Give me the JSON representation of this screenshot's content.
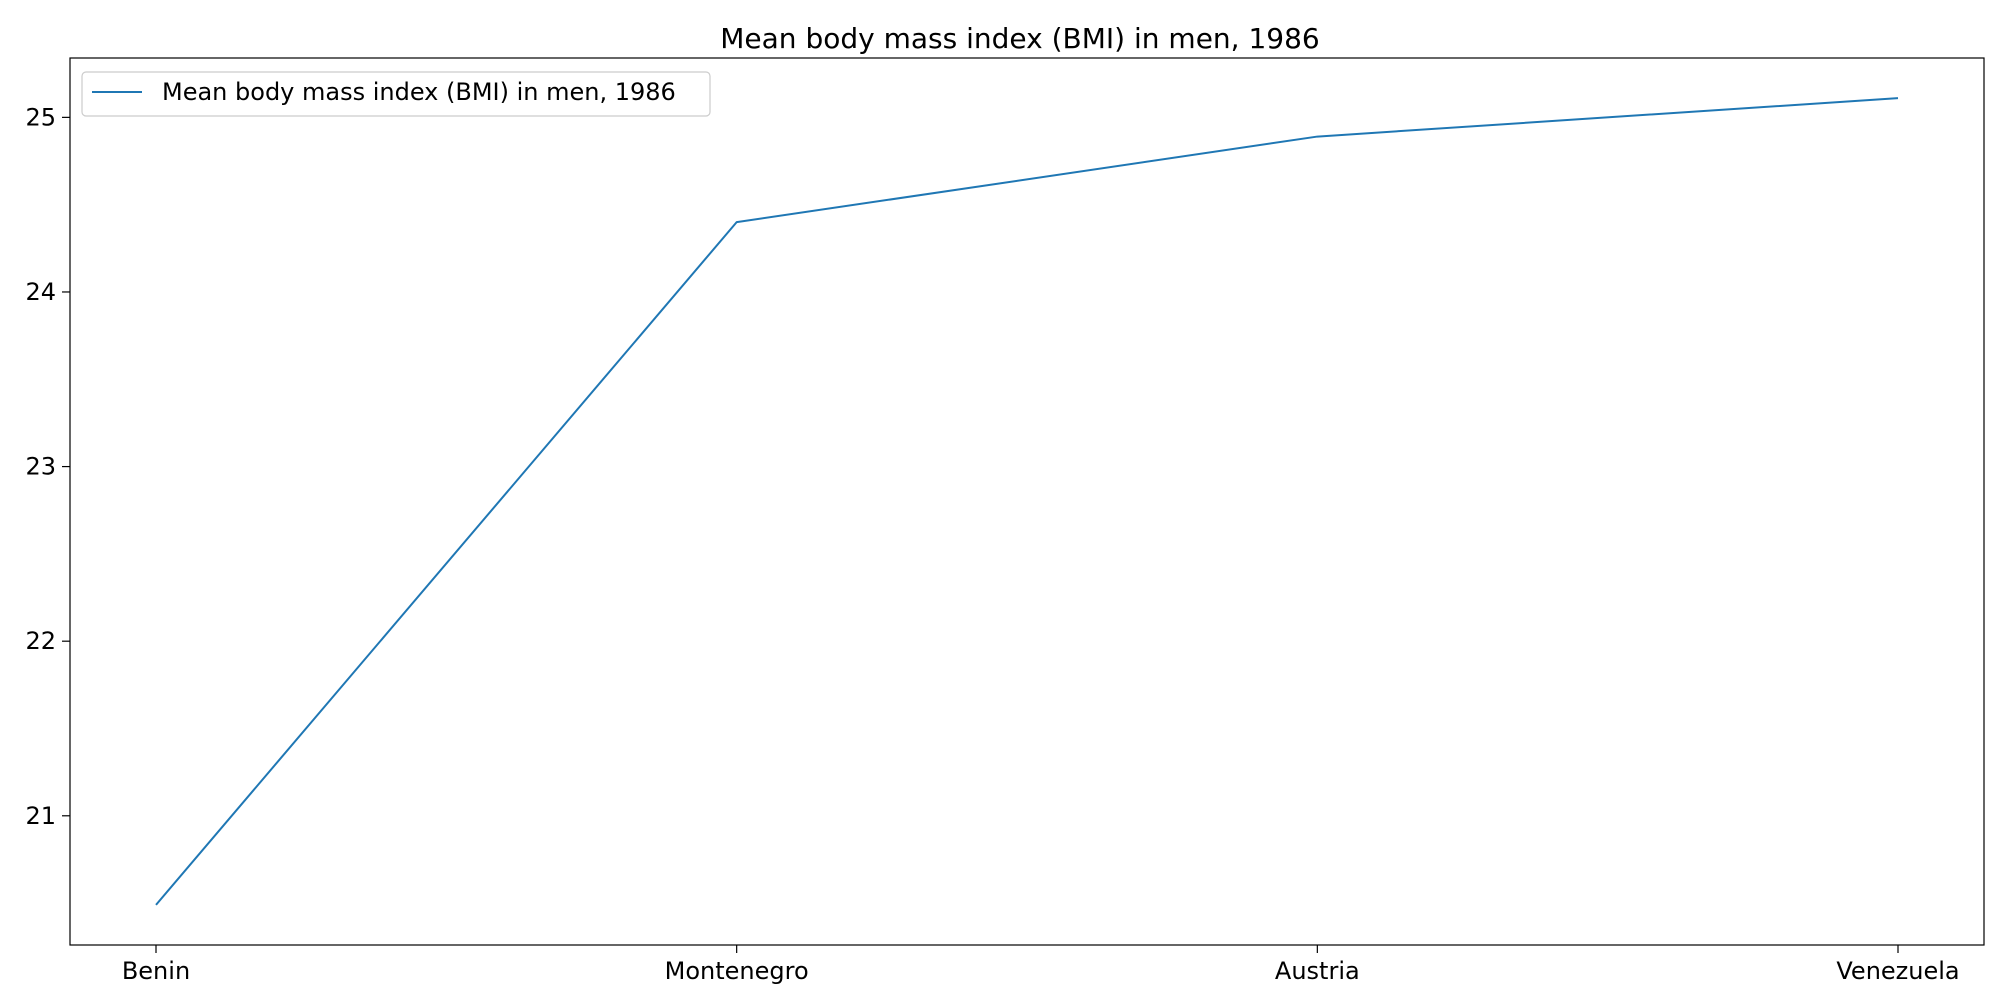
{
  "chart_data": {
    "type": "line",
    "title": "Mean body mass index (BMI) in men, 1986",
    "xlabel": "",
    "ylabel": "",
    "categories": [
      "Benin",
      "Montenegro",
      "Austria",
      "Venezuela"
    ],
    "series": [
      {
        "name": "Mean body mass index (BMI) in men, 1986",
        "values": [
          20.49,
          24.4,
          24.89,
          25.11
        ],
        "color": "#1f77b4"
      }
    ],
    "yticks": [
      21,
      22,
      23,
      24,
      25
    ],
    "ylim": [
      20.26,
      25.34
    ],
    "grid": false,
    "legend_position": "top-left"
  }
}
